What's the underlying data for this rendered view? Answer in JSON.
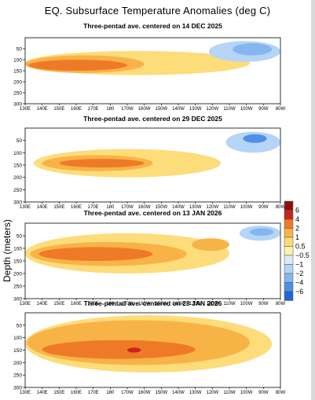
{
  "title": "EQ. Subsurface Temperature Anomalies (deg C)",
  "ylabel": "Depth (meters)",
  "colors": {
    "neg6": "#2166d6",
    "neg4": "#4f8fe6",
    "neg2": "#86b6ef",
    "neg1": "#b5d4f6",
    "neg05": "#d9eafb",
    "pos05": "#fdf0a8",
    "pos1": "#fddc7a",
    "pos2": "#f8b347",
    "pos4": "#ee7a28",
    "pos6": "#c9231d",
    "pos8": "#8d0f0f"
  },
  "chart_data": [
    {
      "type": "heatmap",
      "title": "Three-pentad ave. centered on 14 DEC 2025",
      "x_ticks": [
        "130E",
        "140E",
        "150E",
        "160E",
        "170E",
        "180",
        "170W",
        "160W",
        "150W",
        "140W",
        "130W",
        "120W",
        "110W",
        "100W",
        "90W",
        "80W"
      ],
      "y_ticks": [
        50,
        100,
        150,
        200,
        250,
        300
      ],
      "ylim": [
        300,
        0
      ],
      "anomalies": [
        {
          "level": 1,
          "lon": [
            130,
            262
          ],
          "depth": [
            60,
            170
          ]
        },
        {
          "level": 2,
          "lon": [
            130,
            200
          ],
          "depth": [
            80,
            160
          ]
        },
        {
          "level": 4,
          "lon": [
            132,
            190
          ],
          "depth": [
            100,
            150
          ]
        },
        {
          "level": -1,
          "lon": [
            238,
            280
          ],
          "depth": [
            15,
            110
          ]
        },
        {
          "level": -2,
          "lon": [
            252,
            275
          ],
          "depth": [
            25,
            80
          ]
        }
      ]
    },
    {
      "type": "heatmap",
      "title": "Three-pentad ave. centered on 29 DEC 2025",
      "x_ticks": [
        "130E",
        "140E",
        "150E",
        "160E",
        "170E",
        "180",
        "170W",
        "160W",
        "150W",
        "140W",
        "130W",
        "120W",
        "110W",
        "100W",
        "90W",
        "80W"
      ],
      "y_ticks": [
        50,
        100,
        150,
        200,
        250,
        300
      ],
      "ylim": [
        300,
        0
      ],
      "anomalies": [
        {
          "level": 1,
          "lon": [
            135,
            245
          ],
          "depth": [
            85,
            200
          ]
        },
        {
          "level": 2,
          "lon": [
            140,
            205
          ],
          "depth": [
            110,
            175
          ]
        },
        {
          "level": 4,
          "lon": [
            150,
            200
          ],
          "depth": [
            125,
            160
          ]
        },
        {
          "level": -1,
          "lon": [
            248,
            280
          ],
          "depth": [
            15,
            100
          ]
        },
        {
          "level": -4,
          "lon": [
            258,
            272
          ],
          "depth": [
            25,
            60
          ]
        }
      ]
    },
    {
      "type": "heatmap",
      "title": "Three-pentad ave. centered on 13 JAN 2026",
      "x_ticks": [
        "130E",
        "140E",
        "150E",
        "160E",
        "170E",
        "180",
        "170W",
        "160W",
        "150W",
        "140W",
        "130W",
        "120W",
        "110W",
        "100W",
        "90W",
        "80W"
      ],
      "y_ticks": [
        50,
        100,
        150,
        200,
        250,
        300
      ],
      "ylim": [
        300,
        0
      ],
      "anomalies": [
        {
          "level": 1,
          "lon": [
            130,
            250
          ],
          "depth": [
            40,
            200
          ]
        },
        {
          "level": 2,
          "lon": [
            133,
            225
          ],
          "depth": [
            75,
            170
          ]
        },
        {
          "level": 4,
          "lon": [
            138,
            205
          ],
          "depth": [
            95,
            150
          ]
        },
        {
          "level": 2,
          "lon": [
            228,
            250
          ],
          "depth": [
            60,
            110
          ]
        },
        {
          "level": -1,
          "lon": [
            256,
            280
          ],
          "depth": [
            10,
            70
          ]
        },
        {
          "level": -2,
          "lon": [
            262,
            276
          ],
          "depth": [
            20,
            50
          ]
        }
      ]
    },
    {
      "type": "heatmap",
      "title": "Three-pentad ave. centered on 28 JAN 2026",
      "x_ticks": [
        "130E",
        "140E",
        "150E",
        "160E",
        "170E",
        "180",
        "170W",
        "160W",
        "150W",
        "140W",
        "130W",
        "120W",
        "110W",
        "100W",
        "90W",
        "80W"
      ],
      "y_ticks": [
        50,
        100,
        150,
        200,
        250,
        300
      ],
      "ylim": [
        300,
        0
      ],
      "anomalies": [
        {
          "level": 1,
          "lon": [
            130,
            275
          ],
          "depth": [
            10,
            240
          ]
        },
        {
          "level": 2,
          "lon": [
            131,
            262
          ],
          "depth": [
            30,
            210
          ]
        },
        {
          "level": 4,
          "lon": [
            140,
            230
          ],
          "depth": [
            110,
            185
          ]
        },
        {
          "level": 6,
          "lon": [
            190,
            198
          ],
          "depth": [
            140,
            160
          ]
        }
      ]
    }
  ],
  "legend": {
    "labels": [
      "6",
      "4",
      "2",
      "1",
      "0.5",
      "−0.5",
      "−1",
      "−2",
      "−4",
      "−6"
    ],
    "levels": [
      "pos8",
      "pos6",
      "pos4",
      "pos2",
      "pos1",
      "pos05",
      "neg05",
      "neg1",
      "neg2",
      "neg4",
      "neg6"
    ]
  }
}
